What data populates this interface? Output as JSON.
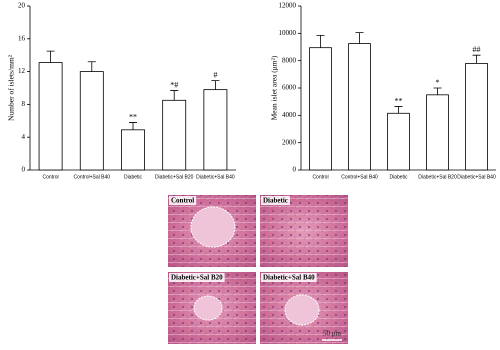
{
  "chart_data": [
    {
      "type": "bar",
      "y_label": "Number of islets/mm²",
      "categories": [
        "Control",
        "Control+Sal B40",
        "Diabetic",
        "Diabetic+Sal B20",
        "Diabetic+Sal B40"
      ],
      "values": [
        13.1,
        12.0,
        4.9,
        8.5,
        9.8
      ],
      "errors": [
        1.4,
        1.2,
        0.9,
        1.2,
        1.1
      ],
      "significance": [
        null,
        null,
        "**",
        "*#",
        "#"
      ],
      "color": "#ffffff",
      "edge_color": "#000000",
      "ylim": [
        0,
        20
      ],
      "yticks": [
        0,
        4,
        8,
        12,
        16,
        20
      ]
    },
    {
      "type": "bar",
      "y_label": "Mean islet area (μm²)",
      "categories": [
        "Control",
        "Control+Sal B40",
        "Diabetic",
        "Diabetic+Sal B20",
        "Diabetic+Sal B40"
      ],
      "values": [
        8950,
        9250,
        4150,
        5500,
        7800
      ],
      "errors": [
        900,
        800,
        500,
        500,
        600
      ],
      "significance": [
        null,
        null,
        "**",
        "*",
        "##"
      ],
      "color": "#ffffff",
      "edge_color": "#000000",
      "ylim": [
        0,
        12000
      ],
      "yticks": [
        0,
        2000,
        4000,
        6000,
        8000,
        10000,
        12000
      ]
    }
  ],
  "panels": [
    {
      "label": "Control"
    },
    {
      "label": "Diabetic"
    },
    {
      "label": "Diabetic+Sal B20"
    },
    {
      "label": "Diabetic+Sal B40"
    }
  ],
  "scale_bar": "50 μm"
}
